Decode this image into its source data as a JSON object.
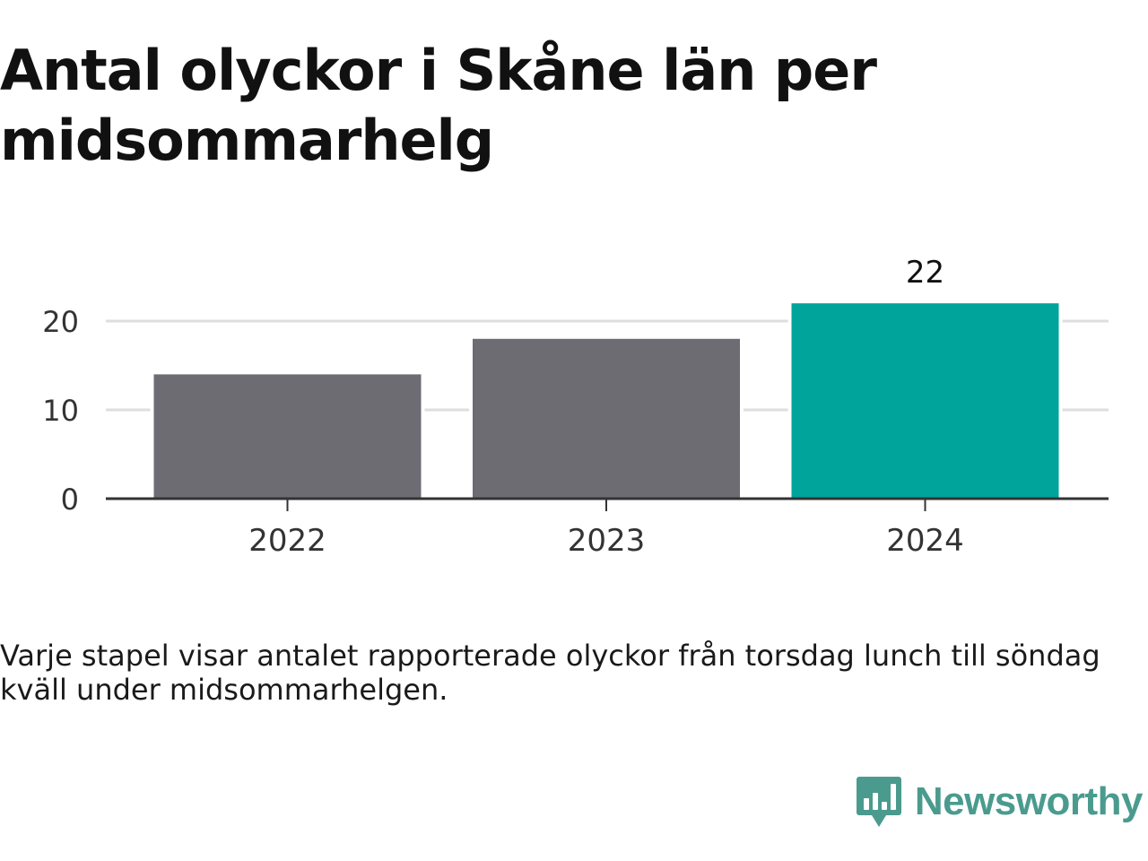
{
  "title": "Antal olyckor i Skåne län per midsommarhelg",
  "caption": "Varje stapel visar antalet rapporterade olyckor från torsdag lunch till söndag kväll under midsommarhelgen.",
  "brand": {
    "name": "Newsworthy",
    "color": "#4a9b8e",
    "icon": "chart-speech-bubble-icon"
  },
  "colors": {
    "bar_default": "#6d6c73",
    "bar_highlight": "#00a49a",
    "gridline": "#dedede",
    "baseline": "#333333",
    "tick_label": "#333333"
  },
  "chart_data": {
    "type": "bar",
    "categories": [
      "2022",
      "2023",
      "2024"
    ],
    "values": [
      14,
      18,
      22
    ],
    "highlight_index": 2,
    "value_labels": [
      null,
      null,
      "22"
    ],
    "yticks": [
      0,
      10,
      20
    ],
    "ylim": [
      0,
      22
    ],
    "grid": true,
    "title": "Antal olyckor i Skåne län per midsommarhelg",
    "xlabel": "",
    "ylabel": ""
  }
}
